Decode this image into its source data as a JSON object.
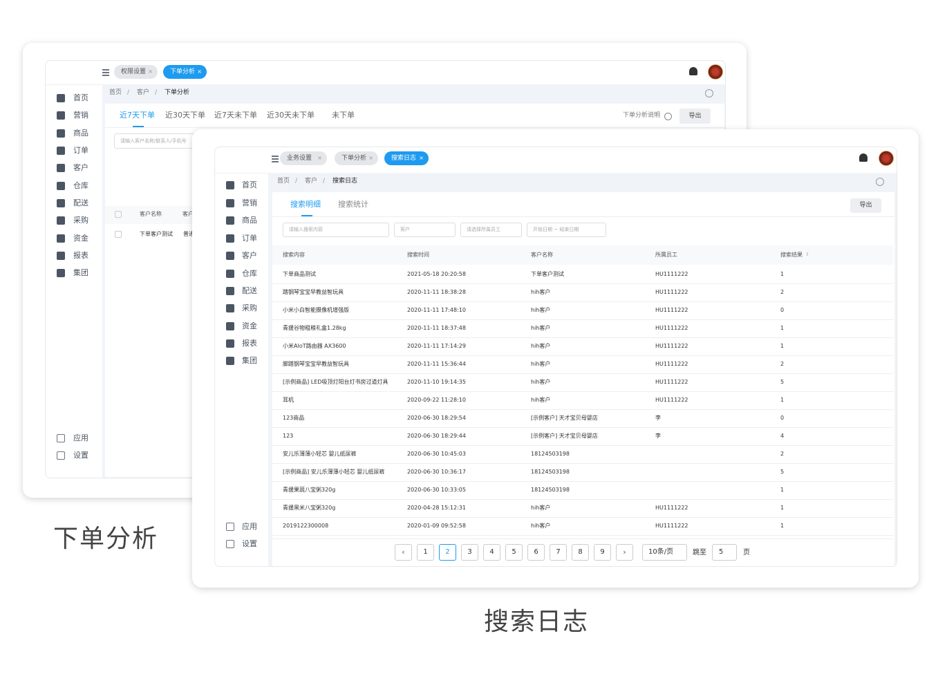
{
  "back": {
    "tabs": [
      "权限设置",
      "下单分析"
    ],
    "breadcrumb": [
      "首页",
      "客户",
      "下单分析"
    ],
    "subtabs": [
      "近7天下单",
      "近30天下单",
      "近7天未下单",
      "近30天未下单",
      "未下单"
    ],
    "help": "下单分析说明",
    "export": "导出",
    "search_placeholder": "请输入客户名称/联系人/手机号",
    "table": {
      "headers": [
        "客户名称",
        "客户"
      ],
      "rows": [
        [
          "下单客户测试",
          "普通"
        ]
      ]
    },
    "menu": [
      "首页",
      "营销",
      "商品",
      "订单",
      "客户",
      "仓库",
      "配送",
      "采购",
      "资金",
      "报表",
      "集团"
    ],
    "menu_bottom": [
      "应用",
      "设置"
    ],
    "caption": "下单分析"
  },
  "front": {
    "tabs": [
      "业务设置",
      "下单分析",
      "搜索日志"
    ],
    "breadcrumb": [
      "首页",
      "客户",
      "搜索日志"
    ],
    "subtabs": [
      "搜索明细",
      "搜索统计"
    ],
    "export": "导出",
    "filters": [
      "请输入搜索内容",
      "客户",
      "请选择所属员工",
      "开始日期 ~ 结束日期"
    ],
    "table": {
      "headers": [
        "搜索内容",
        "搜索时间",
        "客户名称",
        "所属员工",
        "搜索结果"
      ],
      "rows": [
        [
          "下单商品测试",
          "2021-05-18 20:20:58",
          "下单客户测试",
          "HU1111222",
          "1"
        ],
        [
          "踏钢琴宝宝早教益智玩具",
          "2020-11-11 18:38:28",
          "hih客户",
          "HU1111222",
          "2"
        ],
        [
          "小米小白智能摄像机增强版",
          "2020-11-11 17:48:10",
          "hih客户",
          "HU1111222",
          "0"
        ],
        [
          "青援谷物粗粮礼盒1.28kg",
          "2020-11-11 18:37:48",
          "hih客户",
          "HU1111222",
          "1"
        ],
        [
          "小米AIoT路由器 AX3600",
          "2020-11-11 17:14:29",
          "hih客户",
          "HU1111222",
          "1"
        ],
        [
          "脚踏钢琴宝宝早教益智玩具",
          "2020-11-11 15:36:44",
          "hih客户",
          "HU1111222",
          "2"
        ],
        [
          "[示例商品] LED吸顶灯阳台灯书房过道灯具",
          "2020-11-10 19:14:35",
          "hih客户",
          "HU1111222",
          "5"
        ],
        [
          "耳机",
          "2020-09-22 11:28:10",
          "hih客户",
          "HU1111222",
          "1"
        ],
        [
          "123商品",
          "2020-06-30 18:29:54",
          "[示例客户] 天才宝贝母婴店",
          "李",
          "0"
        ],
        [
          "123",
          "2020-06-30 18:29:44",
          "[示例客户] 天才宝贝母婴店",
          "李",
          "4"
        ],
        [
          "安儿乐薄薄小轻芯 婴儿纸尿裤",
          "2020-06-30 10:45:03",
          "18124503198",
          null,
          "2"
        ],
        [
          "[示例商品] 安儿乐薄薄小轻芯 婴儿纸尿裤",
          "2020-06-30 10:36:17",
          "18124503198",
          null,
          "5"
        ],
        [
          "青援果蔬八宝粥320g",
          "2020-06-30 10:33:05",
          "18124503198",
          null,
          "1"
        ],
        [
          "青援黑米八宝粥320g",
          "2020-04-28 15:12:31",
          "hih客户",
          "HU1111222",
          "1"
        ],
        [
          "2019122300008",
          "2020-01-09 09:52:58",
          "hih客户",
          "HU1111222",
          "1"
        ]
      ]
    },
    "pagination": {
      "pages": [
        1,
        2,
        3,
        4,
        5,
        6,
        7,
        8,
        9
      ],
      "current": 2,
      "page_size": "10条/页",
      "jump": "跳至",
      "jump_value": "5",
      "page_unit": "页"
    },
    "menu": [
      "首页",
      "营销",
      "商品",
      "订单",
      "客户",
      "仓库",
      "配送",
      "采购",
      "资金",
      "报表",
      "集团"
    ],
    "menu_bottom": [
      "应用",
      "设置"
    ],
    "caption": "搜索日志"
  }
}
